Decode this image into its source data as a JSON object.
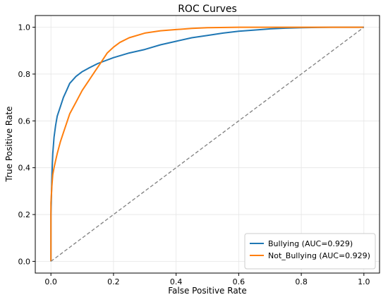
{
  "chart_data": {
    "type": "line",
    "title": "ROC Curves",
    "xlabel": "False Positive Rate",
    "ylabel": "True Positive Rate",
    "xlim": [
      -0.05,
      1.05
    ],
    "ylim": [
      -0.05,
      1.05
    ],
    "xticks": [
      0.0,
      0.2,
      0.4,
      0.6,
      0.8,
      1.0
    ],
    "xtick_labels": [
      "0.0",
      "0.2",
      "0.4",
      "0.6",
      "0.8",
      "1.0"
    ],
    "yticks": [
      0.0,
      0.2,
      0.4,
      0.6,
      0.8,
      1.0
    ],
    "ytick_labels": [
      "0.0",
      "0.2",
      "0.4",
      "0.6",
      "0.8",
      "1.0"
    ],
    "grid": true,
    "legend_position": "bottom-right",
    "series": [
      {
        "name": "Bullying (AUC=0.929)",
        "color": "#1f77b4",
        "x": [
          0.0,
          0.0,
          0.002,
          0.004,
          0.006,
          0.01,
          0.015,
          0.02,
          0.03,
          0.04,
          0.05,
          0.06,
          0.08,
          0.1,
          0.12,
          0.15,
          0.2,
          0.25,
          0.3,
          0.35,
          0.4,
          0.45,
          0.5,
          0.55,
          0.6,
          0.65,
          0.7,
          0.75,
          0.8,
          0.85,
          0.9,
          1.0
        ],
        "y": [
          0.0,
          0.2,
          0.3,
          0.4,
          0.46,
          0.53,
          0.58,
          0.62,
          0.66,
          0.7,
          0.73,
          0.76,
          0.79,
          0.81,
          0.825,
          0.845,
          0.87,
          0.89,
          0.905,
          0.925,
          0.94,
          0.955,
          0.965,
          0.975,
          0.983,
          0.988,
          0.993,
          0.996,
          0.998,
          0.999,
          1.0,
          1.0
        ]
      },
      {
        "name": "Not_Bullying (AUC=0.929)",
        "color": "#ff7f0e",
        "x": [
          0.0,
          0.0,
          0.003,
          0.006,
          0.01,
          0.015,
          0.02,
          0.03,
          0.04,
          0.05,
          0.06,
          0.08,
          0.1,
          0.12,
          0.14,
          0.16,
          0.18,
          0.2,
          0.22,
          0.25,
          0.3,
          0.35,
          0.4,
          0.45,
          0.5,
          0.6,
          0.7,
          0.8,
          0.9,
          1.0
        ],
        "y": [
          0.0,
          0.25,
          0.32,
          0.37,
          0.4,
          0.43,
          0.46,
          0.51,
          0.55,
          0.59,
          0.63,
          0.68,
          0.73,
          0.77,
          0.81,
          0.85,
          0.89,
          0.915,
          0.935,
          0.955,
          0.975,
          0.985,
          0.99,
          0.995,
          0.998,
          1.0,
          1.0,
          1.0,
          1.0,
          1.0
        ]
      },
      {
        "name": "",
        "color": "#808080",
        "dashed": true,
        "x": [
          0.0,
          1.0
        ],
        "y": [
          0.0,
          1.0
        ]
      }
    ]
  }
}
